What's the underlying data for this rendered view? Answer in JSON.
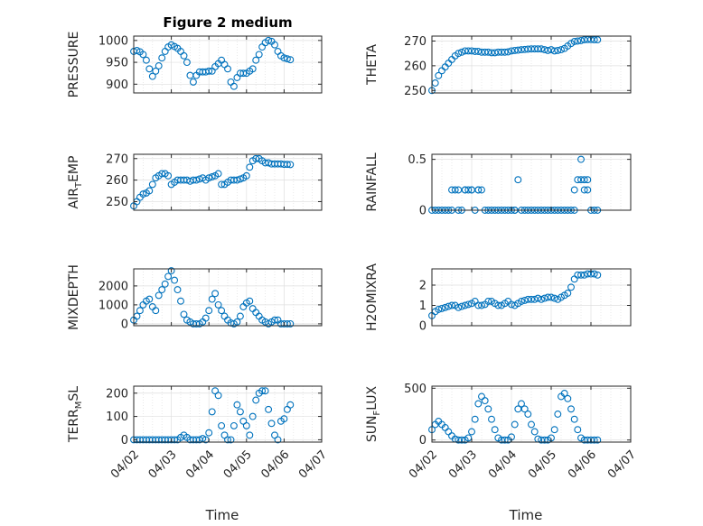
{
  "figure": {
    "title": "Figure 2 medium",
    "marker_color": "#0072BD",
    "axis_color": "#262626",
    "grid_color": "#dfdfdf"
  },
  "chart_data": [
    {
      "type": "scatter",
      "id": "pressure",
      "ylabel": "PRESSURE",
      "ylim": [
        880,
        1010
      ],
      "yticks": [
        900,
        950,
        1000
      ],
      "grid": true,
      "show_xticks": false,
      "xlim": [
        "04/02",
        "04/07"
      ],
      "x": [
        "04/02 00:00",
        "04/02 02:00",
        "04/02 04:00",
        "04/02 06:00",
        "04/02 08:00",
        "04/02 10:00",
        "04/02 12:00",
        "04/02 14:00",
        "04/02 16:00",
        "04/02 18:00",
        "04/02 20:00",
        "04/02 22:00",
        "04/03 00:00",
        "04/03 02:00",
        "04/03 04:00",
        "04/03 06:00",
        "04/03 08:00",
        "04/03 10:00",
        "04/03 12:00",
        "04/03 14:00",
        "04/03 16:00",
        "04/03 18:00",
        "04/03 20:00",
        "04/03 22:00",
        "04/04 00:00",
        "04/04 02:00",
        "04/04 04:00",
        "04/04 06:00",
        "04/04 08:00",
        "04/04 10:00",
        "04/04 12:00",
        "04/04 14:00",
        "04/04 16:00",
        "04/04 18:00",
        "04/04 20:00",
        "04/04 22:00",
        "04/05 00:00",
        "04/05 02:00",
        "04/05 04:00",
        "04/05 06:00",
        "04/05 08:00",
        "04/05 10:00",
        "04/05 12:00",
        "04/05 14:00",
        "04/05 16:00",
        "04/05 18:00",
        "04/05 20:00",
        "04/05 22:00",
        "04/06 00:00",
        "04/06 02:00",
        "04/06 04:00"
      ],
      "y": [
        975,
        977,
        974,
        968,
        955,
        935,
        918,
        930,
        942,
        960,
        975,
        985,
        990,
        986,
        982,
        975,
        965,
        950,
        920,
        905,
        920,
        928,
        928,
        928,
        930,
        930,
        940,
        947,
        955,
        945,
        935,
        905,
        895,
        915,
        925,
        925,
        925,
        930,
        935,
        955,
        968,
        985,
        995,
        1000,
        998,
        990,
        975,
        965,
        960,
        958,
        956
      ]
    },
    {
      "type": "scatter",
      "id": "theta",
      "ylabel": "THETA",
      "ylim": [
        249,
        272
      ],
      "yticks": [
        250,
        260,
        270
      ],
      "grid": true,
      "show_xticks": false,
      "xlim": [
        "04/02",
        "04/07"
      ],
      "x": [
        "04/02 00:00",
        "04/02 02:00",
        "04/02 04:00",
        "04/02 06:00",
        "04/02 08:00",
        "04/02 10:00",
        "04/02 12:00",
        "04/02 14:00",
        "04/02 16:00",
        "04/02 18:00",
        "04/02 20:00",
        "04/02 22:00",
        "04/03 00:00",
        "04/03 02:00",
        "04/03 04:00",
        "04/03 06:00",
        "04/03 08:00",
        "04/03 10:00",
        "04/03 12:00",
        "04/03 14:00",
        "04/03 16:00",
        "04/03 18:00",
        "04/03 20:00",
        "04/03 22:00",
        "04/04 00:00",
        "04/04 02:00",
        "04/04 04:00",
        "04/04 06:00",
        "04/04 08:00",
        "04/04 10:00",
        "04/04 12:00",
        "04/04 14:00",
        "04/04 16:00",
        "04/04 18:00",
        "04/04 20:00",
        "04/04 22:00",
        "04/05 00:00",
        "04/05 02:00",
        "04/05 04:00",
        "04/05 06:00",
        "04/05 08:00",
        "04/05 10:00",
        "04/05 12:00",
        "04/05 14:00",
        "04/05 16:00",
        "04/05 18:00",
        "04/05 20:00",
        "04/05 22:00",
        "04/06 00:00",
        "04/06 02:00",
        "04/06 04:00"
      ],
      "y": [
        250,
        253,
        256,
        258,
        259.5,
        261,
        262.5,
        264,
        265,
        265.5,
        266,
        266,
        266,
        265.8,
        265.8,
        265.5,
        265.5,
        265.5,
        265.3,
        265.3,
        265.5,
        265.5,
        265.5,
        265.6,
        266,
        266.2,
        266.3,
        266.5,
        266.6,
        266.7,
        266.8,
        266.8,
        266.8,
        266.8,
        266.5,
        266.2,
        266.5,
        266,
        266.2,
        266.5,
        267,
        268,
        269,
        269.8,
        270,
        270.2,
        270.5,
        270.6,
        270.6,
        270.5,
        270.5
      ]
    },
    {
      "type": "scatter",
      "id": "air_temp",
      "ylabel": "AIR_TEMP",
      "ylim": [
        246,
        272
      ],
      "yticks": [
        250,
        260,
        270
      ],
      "grid": true,
      "show_xticks": false,
      "xlim": [
        "04/02",
        "04/07"
      ],
      "x": [
        "04/02 00:00",
        "04/02 02:00",
        "04/02 04:00",
        "04/02 06:00",
        "04/02 08:00",
        "04/02 10:00",
        "04/02 12:00",
        "04/02 14:00",
        "04/02 16:00",
        "04/02 18:00",
        "04/02 20:00",
        "04/02 22:00",
        "04/03 00:00",
        "04/03 02:00",
        "04/03 04:00",
        "04/03 06:00",
        "04/03 08:00",
        "04/03 10:00",
        "04/03 12:00",
        "04/03 14:00",
        "04/03 16:00",
        "04/03 18:00",
        "04/03 20:00",
        "04/03 22:00",
        "04/04 00:00",
        "04/04 02:00",
        "04/04 04:00",
        "04/04 06:00",
        "04/04 08:00",
        "04/04 10:00",
        "04/04 12:00",
        "04/04 14:00",
        "04/04 16:00",
        "04/04 18:00",
        "04/04 20:00",
        "04/04 22:00",
        "04/05 00:00",
        "04/05 02:00",
        "04/05 04:00",
        "04/05 06:00",
        "04/05 08:00",
        "04/05 10:00",
        "04/05 12:00",
        "04/05 14:00",
        "04/05 16:00",
        "04/05 18:00",
        "04/05 20:00",
        "04/05 22:00",
        "04/06 00:00",
        "04/06 02:00",
        "04/06 04:00"
      ],
      "y": [
        248,
        250,
        252,
        253.5,
        254,
        255,
        258,
        261,
        262,
        263,
        263,
        262,
        258,
        259,
        260,
        260,
        260,
        260,
        259.5,
        260,
        260,
        260.5,
        261,
        260,
        261,
        261.5,
        262,
        263,
        258,
        258,
        259,
        260,
        260,
        260,
        260.5,
        261,
        262,
        266,
        269,
        270,
        270,
        269,
        268,
        268,
        267.5,
        267.5,
        267.5,
        267.5,
        267.3,
        267.3,
        267.2
      ]
    },
    {
      "type": "scatter",
      "id": "rainfall",
      "ylabel": "RAINFALL",
      "ylim": [
        0,
        0.55
      ],
      "yticks": [
        0,
        0.5
      ],
      "grid": true,
      "show_xticks": false,
      "xlim": [
        "04/02",
        "04/07"
      ],
      "x": [
        "04/02 00:00",
        "04/02 02:00",
        "04/02 04:00",
        "04/02 06:00",
        "04/02 08:00",
        "04/02 10:00",
        "04/02 12:00",
        "04/02 14:00",
        "04/02 16:00",
        "04/02 18:00",
        "04/02 20:00",
        "04/02 22:00",
        "04/03 00:00",
        "04/03 02:00",
        "04/03 04:00",
        "04/03 06:00",
        "04/03 08:00",
        "04/03 10:00",
        "04/03 12:00",
        "04/03 14:00",
        "04/03 16:00",
        "04/03 18:00",
        "04/03 20:00",
        "04/03 22:00",
        "04/04 00:00",
        "04/04 02:00",
        "04/04 04:00",
        "04/04 06:00",
        "04/04 08:00",
        "04/04 10:00",
        "04/04 12:00",
        "04/04 14:00",
        "04/04 16:00",
        "04/04 18:00",
        "04/04 20:00",
        "04/04 22:00",
        "04/05 00:00",
        "04/05 02:00",
        "04/05 04:00",
        "04/05 06:00",
        "04/05 08:00",
        "04/05 10:00",
        "04/05 12:00",
        "04/05 14:00",
        "04/05 16:00",
        "04/05 18:00",
        "04/05 20:00",
        "04/05 22:00",
        "04/06 00:00",
        "04/06 02:00",
        "04/06 04:00",
        "04/02 12:00",
        "04/02 16:00",
        "04/02 20:00",
        "04/03 00:00",
        "04/03 04:00",
        "04/04 02:00",
        "04/05 14:00",
        "04/05 18:00",
        "04/05 20:00",
        "04/05 22:00"
      ],
      "y": [
        0,
        0,
        0,
        0,
        0,
        0,
        0.2,
        0.2,
        0,
        0,
        0.2,
        0.2,
        0.2,
        0,
        0.2,
        0.2,
        0,
        0,
        0,
        0,
        0,
        0,
        0,
        0,
        0,
        0,
        0.3,
        0,
        0,
        0,
        0,
        0,
        0,
        0,
        0,
        0,
        0,
        0,
        0,
        0,
        0,
        0,
        0,
        0.2,
        0.3,
        0.5,
        0.3,
        0.2,
        0,
        0,
        0,
        0,
        0.2,
        0.2,
        0.2,
        0.2,
        0,
        0,
        0.3,
        0.2,
        0.3
      ]
    },
    {
      "type": "scatter",
      "id": "mixdepth",
      "ylabel": "MIXDEPTH",
      "ylim": [
        -100,
        2900
      ],
      "yticks": [
        0,
        1000,
        2000
      ],
      "grid": true,
      "show_xticks": false,
      "xlim": [
        "04/02",
        "04/07"
      ],
      "x": [
        "04/02 00:00",
        "04/02 02:00",
        "04/02 04:00",
        "04/02 06:00",
        "04/02 08:00",
        "04/02 10:00",
        "04/02 12:00",
        "04/02 14:00",
        "04/02 16:00",
        "04/02 18:00",
        "04/02 20:00",
        "04/02 22:00",
        "04/03 00:00",
        "04/03 02:00",
        "04/03 04:00",
        "04/03 06:00",
        "04/03 08:00",
        "04/03 10:00",
        "04/03 12:00",
        "04/03 14:00",
        "04/03 16:00",
        "04/03 18:00",
        "04/03 20:00",
        "04/03 22:00",
        "04/04 00:00",
        "04/04 02:00",
        "04/04 04:00",
        "04/04 06:00",
        "04/04 08:00",
        "04/04 10:00",
        "04/04 12:00",
        "04/04 14:00",
        "04/04 16:00",
        "04/04 18:00",
        "04/04 20:00",
        "04/04 22:00",
        "04/05 00:00",
        "04/05 02:00",
        "04/05 04:00",
        "04/05 06:00",
        "04/05 08:00",
        "04/05 10:00",
        "04/05 12:00",
        "04/05 14:00",
        "04/05 16:00",
        "04/05 18:00",
        "04/05 20:00",
        "04/05 22:00",
        "04/06 00:00",
        "04/06 02:00",
        "04/06 04:00"
      ],
      "y": [
        200,
        400,
        700,
        1000,
        1200,
        1300,
        900,
        700,
        1500,
        1800,
        2100,
        2500,
        2800,
        2300,
        1800,
        1200,
        500,
        200,
        100,
        0,
        0,
        0,
        100,
        300,
        700,
        1300,
        1600,
        1000,
        700,
        400,
        200,
        50,
        0,
        100,
        400,
        900,
        1100,
        1200,
        800,
        600,
        400,
        200,
        100,
        0,
        100,
        200,
        200,
        0,
        0,
        0,
        0
      ]
    },
    {
      "type": "scatter",
      "id": "h2omixra",
      "ylabel": "H2OMIXRA",
      "ylim": [
        0,
        2.8
      ],
      "yticks": [
        0,
        1,
        2
      ],
      "grid": true,
      "show_xticks": false,
      "xlim": [
        "04/02",
        "04/07"
      ],
      "x": [
        "04/02 00:00",
        "04/02 02:00",
        "04/02 04:00",
        "04/02 06:00",
        "04/02 08:00",
        "04/02 10:00",
        "04/02 12:00",
        "04/02 14:00",
        "04/02 16:00",
        "04/02 18:00",
        "04/02 20:00",
        "04/02 22:00",
        "04/03 00:00",
        "04/03 02:00",
        "04/03 04:00",
        "04/03 06:00",
        "04/03 08:00",
        "04/03 10:00",
        "04/03 12:00",
        "04/03 14:00",
        "04/03 16:00",
        "04/03 18:00",
        "04/03 20:00",
        "04/03 22:00",
        "04/04 00:00",
        "04/04 02:00",
        "04/04 04:00",
        "04/04 06:00",
        "04/04 08:00",
        "04/04 10:00",
        "04/04 12:00",
        "04/04 14:00",
        "04/04 16:00",
        "04/04 18:00",
        "04/04 20:00",
        "04/04 22:00",
        "04/05 00:00",
        "04/05 02:00",
        "04/05 04:00",
        "04/05 06:00",
        "04/05 08:00",
        "04/05 10:00",
        "04/05 12:00",
        "04/05 14:00",
        "04/05 16:00",
        "04/05 18:00",
        "04/05 20:00",
        "04/05 22:00",
        "04/06 00:00",
        "04/06 02:00",
        "04/06 04:00"
      ],
      "y": [
        0.5,
        0.7,
        0.8,
        0.85,
        0.9,
        0.95,
        1.0,
        1.0,
        0.9,
        0.95,
        1.0,
        1.05,
        1.1,
        1.2,
        1.0,
        1.0,
        1.05,
        1.2,
        1.2,
        1.1,
        1.0,
        1.0,
        1.1,
        1.2,
        1.05,
        1.0,
        1.1,
        1.2,
        1.25,
        1.3,
        1.3,
        1.3,
        1.35,
        1.3,
        1.35,
        1.4,
        1.4,
        1.35,
        1.3,
        1.4,
        1.5,
        1.6,
        1.9,
        2.3,
        2.5,
        2.5,
        2.5,
        2.55,
        2.55,
        2.55,
        2.5
      ]
    },
    {
      "type": "scatter",
      "id": "terr_msl",
      "ylabel": "TERR_MSL",
      "ylim": [
        -10,
        230
      ],
      "yticks": [
        0,
        100,
        200
      ],
      "grid": true,
      "show_xticks": true,
      "xlim": [
        "04/02",
        "04/07"
      ],
      "xticklabels": [
        "04/02",
        "04/03",
        "04/04",
        "04/05",
        "04/06",
        "04/07"
      ],
      "xlabel": "Time",
      "x": [
        "04/02 00:00",
        "04/02 02:00",
        "04/02 04:00",
        "04/02 06:00",
        "04/02 08:00",
        "04/02 10:00",
        "04/02 12:00",
        "04/02 14:00",
        "04/02 16:00",
        "04/02 18:00",
        "04/02 20:00",
        "04/02 22:00",
        "04/03 00:00",
        "04/03 02:00",
        "04/03 04:00",
        "04/03 06:00",
        "04/03 08:00",
        "04/03 10:00",
        "04/03 12:00",
        "04/03 14:00",
        "04/03 16:00",
        "04/03 18:00",
        "04/03 20:00",
        "04/03 22:00",
        "04/04 00:00",
        "04/04 02:00",
        "04/04 04:00",
        "04/04 06:00",
        "04/04 08:00",
        "04/04 10:00",
        "04/04 12:00",
        "04/04 14:00",
        "04/04 16:00",
        "04/04 18:00",
        "04/04 20:00",
        "04/04 22:00",
        "04/05 00:00",
        "04/05 02:00",
        "04/05 04:00",
        "04/05 06:00",
        "04/05 08:00",
        "04/05 10:00",
        "04/05 12:00",
        "04/05 14:00",
        "04/05 16:00",
        "04/05 18:00",
        "04/05 20:00",
        "04/05 22:00",
        "04/06 00:00",
        "04/06 02:00",
        "04/06 04:00"
      ],
      "y": [
        0,
        0,
        0,
        0,
        0,
        0,
        0,
        0,
        0,
        0,
        0,
        0,
        0,
        0,
        0,
        10,
        20,
        10,
        0,
        0,
        0,
        0,
        5,
        0,
        30,
        120,
        210,
        190,
        60,
        20,
        0,
        0,
        60,
        150,
        120,
        80,
        60,
        20,
        100,
        170,
        200,
        210,
        210,
        130,
        70,
        20,
        0,
        80,
        90,
        130,
        150
      ]
    },
    {
      "type": "scatter",
      "id": "sun_flux",
      "ylabel": "SUN_FLUX",
      "ylim": [
        -20,
        520
      ],
      "yticks": [
        0,
        500
      ],
      "grid": true,
      "show_xticks": true,
      "xlim": [
        "04/02",
        "04/07"
      ],
      "xticklabels": [
        "04/02",
        "04/03",
        "04/04",
        "04/05",
        "04/06",
        "04/07"
      ],
      "xlabel": "Time",
      "x": [
        "04/02 00:00",
        "04/02 02:00",
        "04/02 04:00",
        "04/02 06:00",
        "04/02 08:00",
        "04/02 10:00",
        "04/02 12:00",
        "04/02 14:00",
        "04/02 16:00",
        "04/02 18:00",
        "04/02 20:00",
        "04/02 22:00",
        "04/03 00:00",
        "04/03 02:00",
        "04/03 04:00",
        "04/03 06:00",
        "04/03 08:00",
        "04/03 10:00",
        "04/03 12:00",
        "04/03 14:00",
        "04/03 16:00",
        "04/03 18:00",
        "04/03 20:00",
        "04/03 22:00",
        "04/04 00:00",
        "04/04 02:00",
        "04/04 04:00",
        "04/04 06:00",
        "04/04 08:00",
        "04/04 10:00",
        "04/04 12:00",
        "04/04 14:00",
        "04/04 16:00",
        "04/04 18:00",
        "04/04 20:00",
        "04/04 22:00",
        "04/05 00:00",
        "04/05 02:00",
        "04/05 04:00",
        "04/05 06:00",
        "04/05 08:00",
        "04/05 10:00",
        "04/05 12:00",
        "04/05 14:00",
        "04/05 16:00",
        "04/05 18:00",
        "04/05 20:00",
        "04/05 22:00",
        "04/06 00:00",
        "04/06 02:00",
        "04/06 04:00"
      ],
      "y": [
        100,
        150,
        180,
        150,
        120,
        80,
        40,
        10,
        0,
        0,
        0,
        20,
        80,
        200,
        350,
        420,
        380,
        300,
        200,
        100,
        20,
        0,
        0,
        0,
        30,
        150,
        300,
        350,
        300,
        250,
        150,
        80,
        10,
        0,
        0,
        0,
        20,
        100,
        250,
        420,
        450,
        400,
        300,
        200,
        100,
        20,
        0,
        0,
        0,
        0,
        0
      ]
    }
  ]
}
